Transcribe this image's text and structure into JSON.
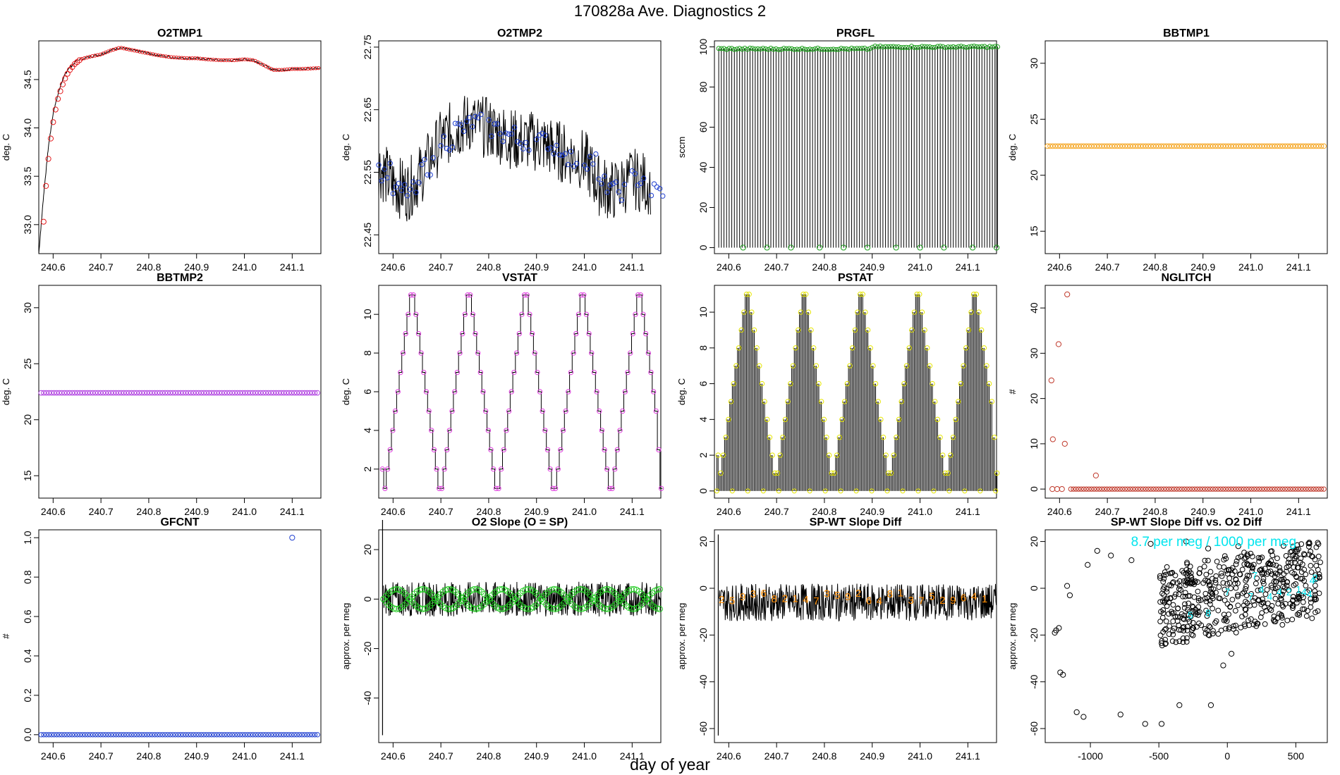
{
  "figure": {
    "title": "170828a   Ave. Diagnostics 2",
    "xlabel": "day of year"
  },
  "colors": {
    "red": "#e41a1c",
    "blue": "#1f3fd0",
    "green": "#1a9e1a",
    "orange": "#f5a623",
    "purple": "#b040e0",
    "magenta": "#e040e0",
    "yellow": "#e6e600",
    "brown": "#c0392b",
    "lime": "#22cc22",
    "darkorange": "#ff8c00",
    "cyan": "#00e5ee",
    "black": "#000000"
  },
  "chart_data": [
    {
      "id": "o2tmp1",
      "type": "line",
      "title": "O2TMP1",
      "ylabel": "deg. C",
      "xlim": [
        240.57,
        241.16
      ],
      "ylim": [
        32.7,
        34.9
      ],
      "xticks": [
        240.6,
        240.7,
        240.8,
        240.9,
        241.0,
        241.1
      ],
      "xtick_labels": [
        "240.6",
        "240.7",
        "240.8",
        "240.9",
        "241.0",
        "241.1"
      ],
      "yticks": [
        33.0,
        33.5,
        34.0,
        34.5
      ],
      "ytick_labels": [
        "33.0",
        "33.5",
        "34.0",
        "34.5"
      ],
      "line": {
        "x": [
          240.57,
          240.58,
          240.59,
          240.6,
          240.61,
          240.62,
          240.63,
          240.65,
          240.68,
          240.7,
          240.72,
          240.74,
          240.76,
          240.78,
          240.8,
          240.82,
          240.85,
          240.88,
          240.9,
          240.92,
          240.95,
          240.98,
          241.0,
          241.02,
          241.04,
          241.06,
          241.08,
          241.1,
          241.12,
          241.16
        ],
        "y": [
          32.7,
          33.3,
          33.8,
          34.15,
          34.35,
          34.5,
          34.6,
          34.7,
          34.74,
          34.76,
          34.8,
          34.83,
          34.81,
          34.79,
          34.77,
          34.75,
          34.73,
          34.72,
          34.72,
          34.71,
          34.7,
          34.7,
          34.71,
          34.7,
          34.65,
          34.6,
          34.6,
          34.61,
          34.61,
          34.62
        ]
      },
      "points": {
        "x": [
          240.58,
          240.585,
          240.59,
          240.595,
          240.6,
          240.605,
          240.61,
          240.615,
          240.62,
          240.625,
          240.63,
          240.635,
          240.64,
          240.645,
          240.65,
          240.655
        ],
        "y": [
          33.03,
          33.4,
          33.68,
          33.89,
          34.06,
          34.19,
          34.3,
          34.38,
          34.45,
          34.51,
          34.56,
          34.6,
          34.63,
          34.66,
          34.68,
          34.7
        ],
        "color": "#e41a1c"
      }
    },
    {
      "id": "o2tmp2",
      "type": "line",
      "title": "O2TMP2",
      "ylabel": "deg. C",
      "xlim": [
        240.57,
        241.16
      ],
      "ylim": [
        22.42,
        22.76
      ],
      "xticks": [
        240.6,
        240.7,
        240.8,
        240.9,
        241.0,
        241.1
      ],
      "xtick_labels": [
        "240.6",
        "240.7",
        "240.8",
        "240.9",
        "241.0",
        "241.1"
      ],
      "yticks": [
        22.45,
        22.55,
        22.65,
        22.75
      ],
      "ytick_labels": [
        "22.45",
        "22.55",
        "22.65",
        "22.75"
      ],
      "line": {
        "x": [
          240.57,
          240.6,
          240.63,
          240.66,
          240.7,
          240.73,
          240.76,
          240.8,
          240.83,
          240.86,
          240.9,
          240.93,
          240.96,
          241.0,
          241.03,
          241.06,
          241.1,
          241.14
        ],
        "y": [
          22.56,
          22.53,
          22.52,
          22.55,
          22.6,
          22.62,
          22.63,
          22.62,
          22.61,
          22.6,
          22.6,
          22.59,
          22.58,
          22.57,
          22.53,
          22.52,
          22.54,
          22.53
        ]
      },
      "points": {
        "x": [
          240.57,
          240.6,
          240.63,
          240.66,
          240.7,
          240.73,
          240.76,
          240.8,
          240.83,
          240.86,
          240.9,
          240.93,
          240.96,
          241.0,
          241.03,
          241.06,
          241.1,
          241.14
        ],
        "y": [
          22.55,
          22.52,
          22.52,
          22.56,
          22.6,
          22.62,
          22.63,
          22.62,
          22.61,
          22.6,
          22.6,
          22.59,
          22.57,
          22.57,
          22.53,
          22.52,
          22.54,
          22.52
        ],
        "color": "#1f3fd0"
      }
    },
    {
      "id": "prgfl",
      "type": "spike",
      "title": "PRGFL",
      "ylabel": "sccm",
      "xlim": [
        240.57,
        241.16
      ],
      "ylim": [
        -3,
        103
      ],
      "xticks": [
        240.6,
        240.7,
        240.8,
        240.9,
        241.0,
        241.1
      ],
      "xtick_labels": [
        "240.6",
        "240.7",
        "240.8",
        "240.9",
        "241.0",
        "241.1"
      ],
      "yticks": [
        0,
        20,
        40,
        60,
        80,
        100
      ],
      "ytick_labels": [
        "0",
        "20",
        "40",
        "60",
        "80",
        "100"
      ],
      "high": {
        "start": 240.579,
        "step": 0.00545,
        "count": 108,
        "value": 99
      },
      "low_points": {
        "x": [
          240.63,
          240.68,
          240.73,
          240.79,
          240.84,
          240.89,
          240.95,
          241.0,
          241.05,
          241.11,
          241.16
        ],
        "y": [
          0,
          0,
          0,
          0,
          0,
          0,
          0,
          0,
          0,
          0,
          0
        ]
      },
      "point_color": "#1a9e1a"
    },
    {
      "id": "bbtmp1",
      "type": "scatter",
      "title": "BBTMP1",
      "ylabel": "deg. C",
      "xlim": [
        240.57,
        241.16
      ],
      "ylim": [
        13,
        32
      ],
      "xticks": [
        240.6,
        240.7,
        240.8,
        240.9,
        241.0,
        241.1
      ],
      "xtick_labels": [
        "240.6",
        "240.7",
        "240.8",
        "240.9",
        "241.0",
        "241.1"
      ],
      "yticks": [
        15,
        20,
        25,
        30
      ],
      "ytick_labels": [
        "15",
        "20",
        "25",
        "30"
      ],
      "series": {
        "start": 240.575,
        "step": 0.0054,
        "count": 108,
        "value": 22.6
      },
      "point_color": "#f5a623"
    },
    {
      "id": "bbtmp2",
      "type": "scatter",
      "title": "BBTMP2",
      "ylabel": "deg. C",
      "xlim": [
        240.57,
        241.16
      ],
      "ylim": [
        13,
        32
      ],
      "xticks": [
        240.6,
        240.7,
        240.8,
        240.9,
        241.0,
        241.1
      ],
      "xtick_labels": [
        "240.6",
        "240.7",
        "240.8",
        "240.9",
        "241.0",
        "241.1"
      ],
      "yticks": [
        15,
        20,
        25,
        30
      ],
      "ytick_labels": [
        "15",
        "20",
        "25",
        "30"
      ],
      "series": {
        "start": 240.575,
        "step": 0.0054,
        "count": 108,
        "value": 22.4
      },
      "point_color": "#b040e0"
    },
    {
      "id": "vstat",
      "type": "step",
      "title": "VSTAT",
      "ylabel": "deg. C",
      "xlim": [
        240.57,
        241.16
      ],
      "ylim": [
        0.5,
        11.5
      ],
      "xticks": [
        240.6,
        240.7,
        240.8,
        240.9,
        241.0,
        241.1
      ],
      "xtick_labels": [
        "240.6",
        "240.7",
        "240.8",
        "240.9",
        "241.0",
        "241.1"
      ],
      "yticks": [
        2,
        4,
        6,
        8,
        10
      ],
      "ytick_labels": [
        "2",
        "4",
        "6",
        "8",
        "10"
      ],
      "step": {
        "start": 240.575,
        "dx": 0.0054,
        "values": [
          2,
          1,
          2,
          3,
          4,
          5,
          6,
          7,
          8,
          9,
          10,
          11,
          11,
          10,
          9,
          8,
          7,
          6,
          5,
          4,
          3,
          2,
          1,
          1,
          2,
          3,
          4,
          5,
          6,
          7,
          8,
          9,
          10,
          11,
          11,
          10,
          9,
          8,
          7,
          6,
          5,
          4,
          3,
          2,
          1,
          1,
          2,
          3,
          4,
          5,
          6,
          7,
          8,
          9,
          10,
          11,
          11,
          10,
          9,
          8,
          7,
          6,
          5,
          4,
          3,
          2,
          1,
          1,
          2,
          3,
          4,
          5,
          6,
          7,
          8,
          9,
          10,
          11,
          11,
          10,
          9,
          8,
          7,
          6,
          5,
          4,
          3,
          2,
          1,
          1,
          2,
          3,
          4,
          5,
          6,
          7,
          8,
          9,
          10,
          11,
          11,
          10,
          9,
          8,
          7,
          6,
          5,
          3,
          1
        ]
      },
      "point_color": "#e040e0"
    },
    {
      "id": "pstat",
      "type": "spike",
      "title": "PSTAT",
      "ylabel": "deg. C",
      "xlim": [
        240.57,
        241.16
      ],
      "ylim": [
        -0.4,
        11.5
      ],
      "xticks": [
        240.6,
        240.7,
        240.8,
        240.9,
        241.0,
        241.1
      ],
      "xtick_labels": [
        "240.6",
        "240.7",
        "240.8",
        "240.9",
        "241.0",
        "241.1"
      ],
      "yticks": [
        0,
        2,
        4,
        6,
        8,
        10
      ],
      "ytick_labels": [
        "0",
        "2",
        "4",
        "6",
        "8",
        "10"
      ],
      "step": {
        "start": 240.575,
        "dx": 0.0054,
        "values": [
          2,
          1,
          2,
          3,
          4,
          5,
          6,
          7,
          8,
          9,
          10,
          11,
          11,
          10,
          9,
          8,
          7,
          6,
          5,
          4,
          3,
          2,
          1,
          1,
          2,
          3,
          4,
          5,
          6,
          7,
          8,
          9,
          10,
          11,
          11,
          10,
          9,
          8,
          7,
          6,
          5,
          4,
          3,
          2,
          1,
          1,
          2,
          3,
          4,
          5,
          6,
          7,
          8,
          9,
          10,
          11,
          11,
          10,
          9,
          8,
          7,
          6,
          5,
          4,
          3,
          2,
          1,
          1,
          2,
          3,
          4,
          5,
          6,
          7,
          8,
          9,
          10,
          11,
          11,
          10,
          9,
          8,
          7,
          6,
          5,
          4,
          3,
          2,
          1,
          1,
          2,
          3,
          4,
          5,
          6,
          7,
          8,
          9,
          10,
          11,
          11,
          10,
          9,
          8,
          7,
          6,
          5,
          3,
          1
        ]
      },
      "point_color": "#e6e600"
    },
    {
      "id": "nglitch",
      "type": "scatter",
      "title": "NGLITCH",
      "ylabel": "#",
      "xlim": [
        240.57,
        241.16
      ],
      "ylim": [
        -2,
        45
      ],
      "xticks": [
        240.6,
        240.7,
        240.8,
        240.9,
        241.0,
        241.1
      ],
      "xtick_labels": [
        "240.6",
        "240.7",
        "240.8",
        "240.9",
        "241.0",
        "241.1"
      ],
      "yticks": [
        0,
        10,
        20,
        30,
        40
      ],
      "ytick_labels": [
        "0",
        "10",
        "20",
        "30",
        "40"
      ],
      "points": {
        "x": [
          240.583,
          240.586,
          240.598,
          240.611,
          240.616,
          240.676
        ],
        "y": [
          24,
          11,
          32,
          10,
          43,
          3
        ],
        "color": "#c0392b"
      },
      "baseline": {
        "start": 240.575,
        "step": 0.0054,
        "count": 108,
        "value": 0
      },
      "point_color": "#c0392b"
    },
    {
      "id": "gfcnt",
      "type": "scatter",
      "title": "GFCNT",
      "ylabel": "#",
      "xlim": [
        240.57,
        241.16
      ],
      "ylim": [
        -0.04,
        1.04
      ],
      "xticks": [
        240.6,
        240.7,
        240.8,
        240.9,
        241.0,
        241.1
      ],
      "xtick_labels": [
        "240.6",
        "240.7",
        "240.8",
        "240.9",
        "241.0",
        "241.1"
      ],
      "yticks": [
        0.0,
        0.2,
        0.4,
        0.6,
        0.8,
        1.0
      ],
      "ytick_labels": [
        "0.0",
        "0.2",
        "0.4",
        "0.6",
        "0.8",
        "1.0"
      ],
      "points": {
        "x": [
          241.1
        ],
        "y": [
          1.0
        ],
        "color": "#1f3fd0"
      },
      "baseline": {
        "start": 240.575,
        "step": 0.0054,
        "count": 108,
        "value": 0
      },
      "point_color": "#1f3fd0"
    },
    {
      "id": "o2slope",
      "type": "line",
      "title": "O2 Slope (O = SP)",
      "ylabel": "approx. per meg",
      "xlim": [
        240.57,
        241.16
      ],
      "ylim": [
        -58,
        28
      ],
      "xticks": [
        240.6,
        240.7,
        240.8,
        240.9,
        241.0,
        241.1
      ],
      "xtick_labels": [
        "240.6",
        "240.7",
        "240.8",
        "240.9",
        "241.0",
        "241.1"
      ],
      "yticks": [
        -40,
        -20,
        0,
        20
      ],
      "ytick_labels": [
        "-40",
        "-20",
        "0",
        "20"
      ],
      "spike": {
        "x": 240.578,
        "ymin": -55,
        "ymax": 32
      },
      "band": {
        "center": 0,
        "spread": 7
      },
      "points": {
        "start": 240.58,
        "step": 0.0054,
        "count": 108,
        "center": 0,
        "amplitude": 4,
        "period": 0.11
      },
      "point_color": "#22cc22"
    },
    {
      "id": "spwt",
      "type": "line",
      "title": "SP-WT Slope Diff",
      "ylabel": "approx. per meg",
      "xlim": [
        240.57,
        241.16
      ],
      "ylim": [
        -66,
        25
      ],
      "xticks": [
        240.6,
        240.7,
        240.8,
        240.9,
        241.0,
        241.1
      ],
      "xtick_labels": [
        "240.6",
        "240.7",
        "240.8",
        "240.9",
        "241.0",
        "241.1"
      ],
      "yticks": [
        -60,
        -40,
        -20,
        0,
        20
      ],
      "ytick_labels": [
        "-60",
        "-40",
        "-20",
        "0",
        "20"
      ],
      "spike": {
        "x": 240.578,
        "ymin": -63,
        "ymax": 23
      },
      "band": {
        "center": -6,
        "spread": 8
      },
      "labels": {
        "text": [
          "2",
          "5",
          "9",
          "3",
          "6",
          "8",
          "2",
          "1",
          "4",
          "7",
          "3",
          "5",
          "9",
          "2",
          "6",
          "4",
          "8",
          "1",
          "3",
          "7",
          "5",
          "2",
          "9",
          "6",
          "4",
          "1"
        ],
        "start": 240.585,
        "step": 0.022,
        "center": -5
      },
      "label_color": "#ff8c00"
    },
    {
      "id": "spwt_vs_o2",
      "type": "scatter",
      "title": "SP-WT Slope Diff vs. O2 Diff",
      "ylabel": "approx. per meg",
      "xlim": [
        -1330,
        730
      ],
      "ylim": [
        -66,
        25
      ],
      "xticks": [
        -1000,
        -500,
        0,
        500
      ],
      "xtick_labels": [
        "-1000",
        "-500",
        "0",
        "500"
      ],
      "yticks": [
        -60,
        -40,
        -20,
        0,
        20
      ],
      "ytick_labels": [
        "-60",
        "-40",
        "-20",
        "0",
        "20"
      ],
      "annotation": "8.7 per meg / 1000 per meg",
      "outliers": {
        "x": [
          -1250,
          -1220,
          -1200,
          -1170,
          -1150,
          -1100,
          -1050,
          -1020,
          -950,
          -850,
          -780,
          -700,
          -600,
          -480,
          -350,
          -250,
          -120,
          -30,
          30,
          80,
          -1230,
          -1260,
          -560,
          -140,
          -300
        ],
        "y": [
          -18,
          -36,
          -37,
          1,
          -3,
          -53,
          -55,
          10,
          16,
          14,
          -54,
          12,
          -58,
          -58,
          -50,
          -10,
          -50,
          -33,
          -28,
          18,
          -17,
          -19,
          19,
          17,
          20
        ]
      },
      "cloud": {
        "xmin": -500,
        "xmax": 680,
        "ymin": -22,
        "ymax": 12,
        "count": 520
      },
      "labels": {
        "text": [
          "5",
          "8",
          "7",
          "7",
          "4",
          "4",
          "4",
          "2",
          "7",
          "1",
          "4",
          "4",
          "2",
          "4"
        ],
        "x": [
          -270,
          -140,
          0,
          200,
          250,
          310,
          380,
          450,
          170,
          520,
          560,
          600,
          640,
          620
        ],
        "y": [
          -13,
          -12,
          -3,
          4,
          -2,
          -5,
          -3,
          -3,
          -5,
          -2,
          -3,
          -4,
          3,
          2
        ]
      },
      "label_color": "#00e5ee"
    }
  ]
}
